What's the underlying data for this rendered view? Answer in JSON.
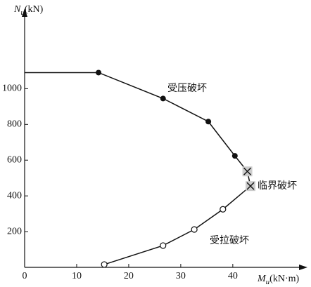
{
  "chart_data": {
    "type": "line",
    "ylabel": {
      "main": "N",
      "sub": "u",
      "unit": "(kN)"
    },
    "xlabel": {
      "main": "M",
      "sub": "u",
      "unit": "(kN·m)"
    },
    "annotations": [
      "受压破坏",
      "临界破坏",
      "受拉破坏"
    ],
    "xlim": [
      0,
      53
    ],
    "ylim": [
      0,
      1410
    ],
    "xticks": [
      0,
      10,
      20,
      30,
      40
    ],
    "yticks": [
      200,
      400,
      600,
      800,
      1000
    ],
    "series": [
      {
        "color": "#111111",
        "x": [
          0,
          14.2,
          26.6,
          35.3,
          40.4,
          42.8,
          43.4,
          38.1,
          32.6,
          26.6,
          15.3
        ],
        "values": [
          1090,
          1090,
          945,
          816,
          624,
          537,
          455,
          325,
          212,
          122,
          16
        ],
        "markers": [
          "none",
          "filled",
          "filled",
          "filled",
          "filled",
          "cross",
          "cross",
          "open",
          "open",
          "open",
          "open"
        ]
      }
    ]
  }
}
